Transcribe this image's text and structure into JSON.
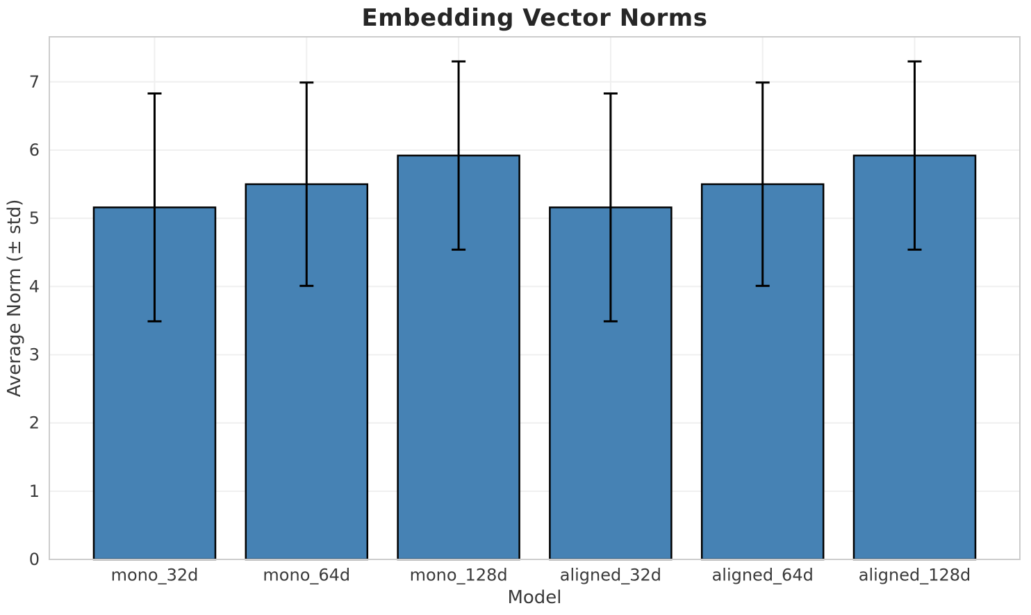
{
  "chart_data": {
    "type": "bar",
    "title": "Embedding Vector Norms",
    "xlabel": "Model",
    "ylabel": "Average Norm (± std)",
    "categories": [
      "mono_32d",
      "mono_64d",
      "mono_128d",
      "aligned_32d",
      "aligned_64d",
      "aligned_128d"
    ],
    "values": [
      5.16,
      5.5,
      5.92,
      5.16,
      5.5,
      5.92
    ],
    "error_std": [
      1.67,
      1.49,
      1.38,
      1.67,
      1.49,
      1.38
    ],
    "yticks": [
      0,
      1,
      2,
      3,
      4,
      5,
      6,
      7
    ],
    "ylim": [
      0,
      7.66
    ],
    "grid": true,
    "legend": false,
    "colors": {
      "bar_fill": "#4682B4",
      "bar_edge": "#000000",
      "error_bar": "#000000",
      "grid_line": "#efefef",
      "spine": "#cccccc",
      "title_text": "#262626",
      "tick_text": "#3a3a3a"
    }
  }
}
